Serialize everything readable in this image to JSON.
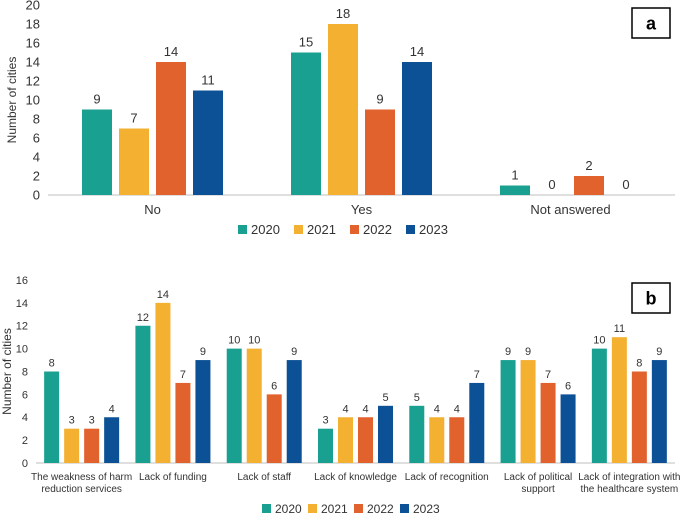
{
  "colors": {
    "2020": "#1aa091",
    "2021": "#f4b031",
    "2022": "#e2622e",
    "2023": "#0c5196",
    "axis": "#bfbfbf",
    "text": "#333333"
  },
  "chart_data": [
    {
      "type": "bar",
      "panel_label": "a",
      "ylabel": "Number of cities",
      "xlabel": "",
      "ylim": [
        0,
        20
      ],
      "yticks": [
        "0",
        "2",
        "4",
        "6",
        "8",
        "10",
        "12",
        "14",
        "16",
        "18",
        "20"
      ],
      "categories": [
        "No",
        "Yes",
        "Not answered"
      ],
      "series": [
        {
          "name": "2020",
          "values": [
            9,
            15,
            1
          ]
        },
        {
          "name": "2021",
          "values": [
            7,
            18,
            0
          ]
        },
        {
          "name": "2022",
          "values": [
            14,
            9,
            2
          ]
        },
        {
          "name": "2023",
          "values": [
            11,
            14,
            0
          ]
        }
      ],
      "legend": [
        "2020",
        "2021",
        "2022",
        "2023"
      ],
      "legend_position": "bottom",
      "grid": false
    },
    {
      "type": "bar",
      "panel_label": "b",
      "ylabel": "Number of cities",
      "xlabel": "",
      "ylim": [
        0,
        16
      ],
      "yticks": [
        "0",
        "2",
        "4",
        "6",
        "8",
        "10",
        "12",
        "14",
        "16"
      ],
      "categories": [
        [
          "The weakness of harm",
          "reduction services"
        ],
        [
          "Lack of funding"
        ],
        [
          "Lack of staff"
        ],
        [
          "Lack of knowledge"
        ],
        [
          "Lack of recognition"
        ],
        [
          "Lack of political",
          "support"
        ],
        [
          "Lack of integration with",
          "the healthcare system"
        ]
      ],
      "series": [
        {
          "name": "2020",
          "values": [
            8,
            12,
            10,
            3,
            5,
            9,
            10
          ]
        },
        {
          "name": "2021",
          "values": [
            3,
            14,
            10,
            4,
            4,
            9,
            11
          ]
        },
        {
          "name": "2022",
          "values": [
            3,
            7,
            6,
            4,
            4,
            7,
            8
          ]
        },
        {
          "name": "2023",
          "values": [
            4,
            9,
            9,
            5,
            7,
            6,
            9
          ]
        }
      ],
      "legend": [
        "2020",
        "2021",
        "2022",
        "2023"
      ],
      "legend_position": "bottom",
      "grid": false
    }
  ]
}
